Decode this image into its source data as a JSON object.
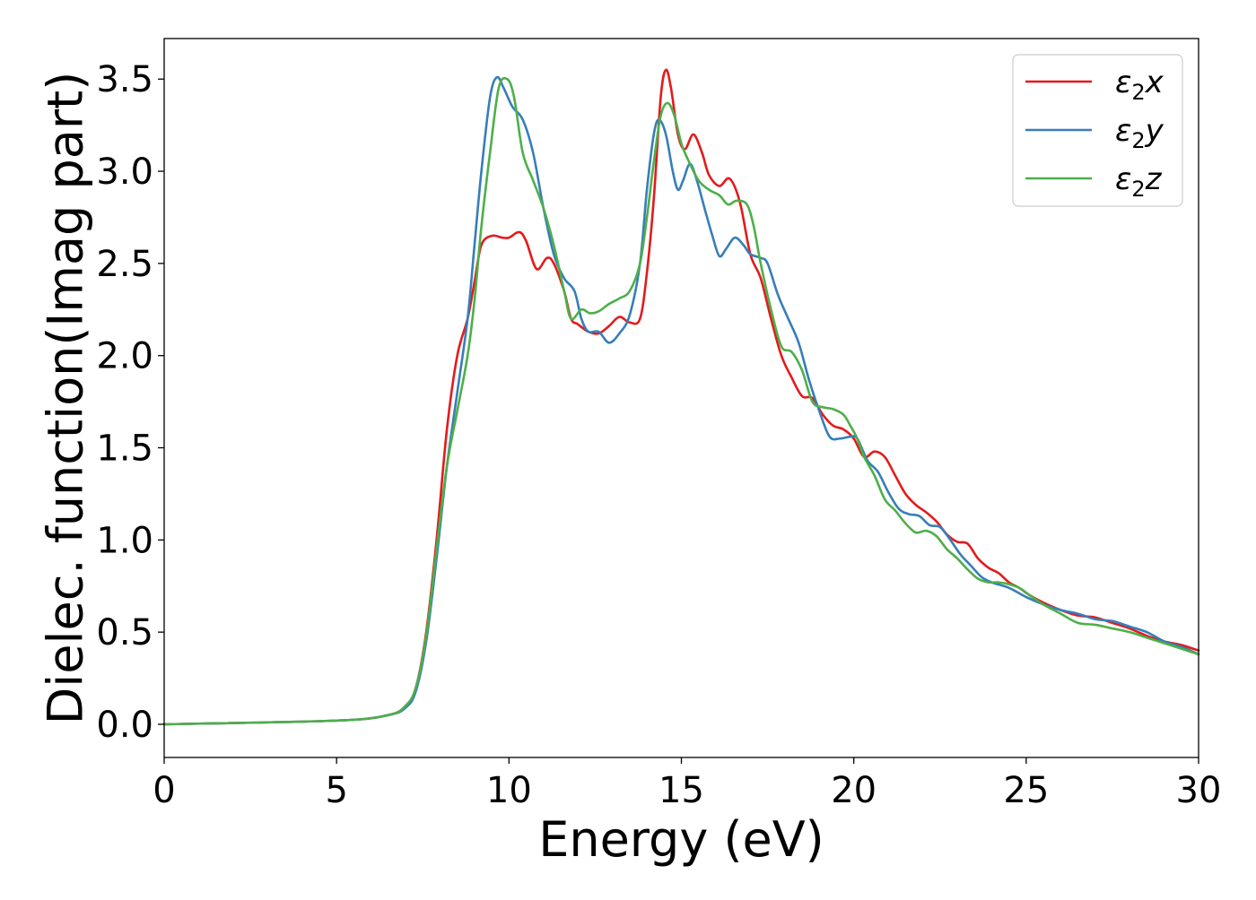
{
  "chart_data": {
    "type": "line",
    "title": "",
    "xlabel": "Energy (eV)",
    "ylabel": "Dielec. function(Imag part)",
    "xlim": [
      0,
      30
    ],
    "ylim": [
      -0.18,
      3.72
    ],
    "x_ticks": [
      0,
      5,
      10,
      15,
      20,
      25,
      30
    ],
    "x_tick_labels": [
      "0",
      "5",
      "10",
      "15",
      "20",
      "25",
      "30"
    ],
    "y_ticks": [
      0.0,
      0.5,
      1.0,
      1.5,
      2.0,
      2.5,
      3.0,
      3.5
    ],
    "y_tick_labels": [
      "0.0",
      "0.5",
      "1.0",
      "1.5",
      "2.0",
      "2.5",
      "3.0",
      "3.5"
    ],
    "grid": false,
    "legend_position": "top-right",
    "series": [
      {
        "name": "ε₂x",
        "legend_base": "ε",
        "legend_sub": "2",
        "legend_var": "x",
        "color": "#e41a1c",
        "points": [
          [
            0,
            0.0
          ],
          [
            5,
            0.02
          ],
          [
            6.5,
            0.05
          ],
          [
            7.0,
            0.1
          ],
          [
            7.3,
            0.2
          ],
          [
            7.6,
            0.5
          ],
          [
            7.9,
            1.0
          ],
          [
            8.2,
            1.6
          ],
          [
            8.5,
            2.0
          ],
          [
            8.8,
            2.2
          ],
          [
            9.0,
            2.4
          ],
          [
            9.2,
            2.6
          ],
          [
            9.5,
            2.65
          ],
          [
            9.8,
            2.64
          ],
          [
            10.0,
            2.64
          ],
          [
            10.3,
            2.67
          ],
          [
            10.5,
            2.62
          ],
          [
            10.8,
            2.47
          ],
          [
            11.1,
            2.53
          ],
          [
            11.3,
            2.5
          ],
          [
            11.6,
            2.35
          ],
          [
            11.8,
            2.2
          ],
          [
            12.0,
            2.17
          ],
          [
            12.3,
            2.13
          ],
          [
            12.6,
            2.12
          ],
          [
            12.9,
            2.16
          ],
          [
            13.2,
            2.21
          ],
          [
            13.5,
            2.18
          ],
          [
            13.8,
            2.2
          ],
          [
            14.0,
            2.45
          ],
          [
            14.2,
            2.85
          ],
          [
            14.4,
            3.4
          ],
          [
            14.55,
            3.55
          ],
          [
            14.7,
            3.45
          ],
          [
            14.9,
            3.2
          ],
          [
            15.1,
            3.12
          ],
          [
            15.35,
            3.2
          ],
          [
            15.6,
            3.1
          ],
          [
            15.8,
            2.98
          ],
          [
            16.1,
            2.92
          ],
          [
            16.4,
            2.96
          ],
          [
            16.7,
            2.83
          ],
          [
            17.0,
            2.55
          ],
          [
            17.3,
            2.42
          ],
          [
            17.6,
            2.2
          ],
          [
            17.9,
            2.0
          ],
          [
            18.2,
            1.88
          ],
          [
            18.5,
            1.78
          ],
          [
            18.8,
            1.77
          ],
          [
            19.1,
            1.68
          ],
          [
            19.4,
            1.62
          ],
          [
            19.7,
            1.6
          ],
          [
            20.0,
            1.55
          ],
          [
            20.3,
            1.45
          ],
          [
            20.6,
            1.48
          ],
          [
            20.9,
            1.45
          ],
          [
            21.2,
            1.35
          ],
          [
            21.5,
            1.25
          ],
          [
            21.8,
            1.19
          ],
          [
            22.1,
            1.15
          ],
          [
            22.4,
            1.1
          ],
          [
            22.7,
            1.03
          ],
          [
            23.0,
            0.99
          ],
          [
            23.3,
            0.98
          ],
          [
            23.6,
            0.9
          ],
          [
            23.9,
            0.85
          ],
          [
            24.2,
            0.82
          ],
          [
            24.5,
            0.77
          ],
          [
            24.8,
            0.74
          ],
          [
            25.1,
            0.7
          ],
          [
            25.5,
            0.66
          ],
          [
            26.0,
            0.62
          ],
          [
            26.5,
            0.59
          ],
          [
            27.0,
            0.58
          ],
          [
            27.5,
            0.55
          ],
          [
            28.0,
            0.52
          ],
          [
            28.5,
            0.48
          ],
          [
            29.0,
            0.45
          ],
          [
            29.5,
            0.43
          ],
          [
            30.0,
            0.4
          ]
        ]
      },
      {
        "name": "ε₂y",
        "legend_base": "ε",
        "legend_sub": "2",
        "legend_var": "y",
        "color": "#377eb8",
        "points": [
          [
            0,
            0.0
          ],
          [
            5,
            0.02
          ],
          [
            6.5,
            0.05
          ],
          [
            7.0,
            0.09
          ],
          [
            7.3,
            0.18
          ],
          [
            7.6,
            0.45
          ],
          [
            7.9,
            0.9
          ],
          [
            8.2,
            1.4
          ],
          [
            8.5,
            1.8
          ],
          [
            8.8,
            2.2
          ],
          [
            9.0,
            2.6
          ],
          [
            9.2,
            3.0
          ],
          [
            9.45,
            3.4
          ],
          [
            9.65,
            3.51
          ],
          [
            9.85,
            3.45
          ],
          [
            10.1,
            3.35
          ],
          [
            10.4,
            3.28
          ],
          [
            10.7,
            3.1
          ],
          [
            11.0,
            2.8
          ],
          [
            11.3,
            2.55
          ],
          [
            11.6,
            2.42
          ],
          [
            11.9,
            2.35
          ],
          [
            12.1,
            2.2
          ],
          [
            12.3,
            2.13
          ],
          [
            12.6,
            2.13
          ],
          [
            12.9,
            2.07
          ],
          [
            13.2,
            2.12
          ],
          [
            13.5,
            2.22
          ],
          [
            13.8,
            2.5
          ],
          [
            14.0,
            2.9
          ],
          [
            14.2,
            3.2
          ],
          [
            14.35,
            3.28
          ],
          [
            14.55,
            3.2
          ],
          [
            14.75,
            3.0
          ],
          [
            14.9,
            2.9
          ],
          [
            15.05,
            2.95
          ],
          [
            15.25,
            3.04
          ],
          [
            15.45,
            2.95
          ],
          [
            15.7,
            2.78
          ],
          [
            15.9,
            2.65
          ],
          [
            16.1,
            2.54
          ],
          [
            16.3,
            2.58
          ],
          [
            16.55,
            2.64
          ],
          [
            16.8,
            2.6
          ],
          [
            17.0,
            2.55
          ],
          [
            17.3,
            2.53
          ],
          [
            17.5,
            2.5
          ],
          [
            17.8,
            2.33
          ],
          [
            18.1,
            2.2
          ],
          [
            18.4,
            2.07
          ],
          [
            18.7,
            1.87
          ],
          [
            19.0,
            1.7
          ],
          [
            19.3,
            1.56
          ],
          [
            19.6,
            1.55
          ],
          [
            19.9,
            1.56
          ],
          [
            20.1,
            1.55
          ],
          [
            20.4,
            1.43
          ],
          [
            20.7,
            1.37
          ],
          [
            21.0,
            1.26
          ],
          [
            21.3,
            1.17
          ],
          [
            21.6,
            1.14
          ],
          [
            21.9,
            1.13
          ],
          [
            22.2,
            1.08
          ],
          [
            22.5,
            1.07
          ],
          [
            22.8,
            1.0
          ],
          [
            23.1,
            0.92
          ],
          [
            23.4,
            0.86
          ],
          [
            23.7,
            0.8
          ],
          [
            24.0,
            0.77
          ],
          [
            24.5,
            0.74
          ],
          [
            25.0,
            0.69
          ],
          [
            25.5,
            0.65
          ],
          [
            26.0,
            0.62
          ],
          [
            26.5,
            0.6
          ],
          [
            27.0,
            0.57
          ],
          [
            27.5,
            0.56
          ],
          [
            28.0,
            0.53
          ],
          [
            28.5,
            0.5
          ],
          [
            29.0,
            0.45
          ],
          [
            29.5,
            0.42
          ],
          [
            30.0,
            0.38
          ]
        ]
      },
      {
        "name": "ε₂z",
        "legend_base": "ε",
        "legend_sub": "2",
        "legend_var": "z",
        "color": "#4daf4a",
        "points": [
          [
            0,
            0.0
          ],
          [
            5,
            0.02
          ],
          [
            6.5,
            0.05
          ],
          [
            7.0,
            0.1
          ],
          [
            7.3,
            0.2
          ],
          [
            7.6,
            0.48
          ],
          [
            7.9,
            0.95
          ],
          [
            8.2,
            1.4
          ],
          [
            8.5,
            1.7
          ],
          [
            8.8,
            2.0
          ],
          [
            9.0,
            2.3
          ],
          [
            9.2,
            2.7
          ],
          [
            9.45,
            3.1
          ],
          [
            9.7,
            3.45
          ],
          [
            9.95,
            3.5
          ],
          [
            10.15,
            3.4
          ],
          [
            10.4,
            3.1
          ],
          [
            10.7,
            2.95
          ],
          [
            11.0,
            2.8
          ],
          [
            11.3,
            2.6
          ],
          [
            11.6,
            2.35
          ],
          [
            11.8,
            2.2
          ],
          [
            12.1,
            2.25
          ],
          [
            12.35,
            2.23
          ],
          [
            12.6,
            2.24
          ],
          [
            12.9,
            2.28
          ],
          [
            13.2,
            2.31
          ],
          [
            13.5,
            2.35
          ],
          [
            13.8,
            2.5
          ],
          [
            14.0,
            2.75
          ],
          [
            14.2,
            3.05
          ],
          [
            14.4,
            3.3
          ],
          [
            14.6,
            3.37
          ],
          [
            14.8,
            3.3
          ],
          [
            15.0,
            3.15
          ],
          [
            15.2,
            3.06
          ],
          [
            15.5,
            2.95
          ],
          [
            15.8,
            2.9
          ],
          [
            16.1,
            2.87
          ],
          [
            16.35,
            2.82
          ],
          [
            16.6,
            2.84
          ],
          [
            16.9,
            2.82
          ],
          [
            17.1,
            2.7
          ],
          [
            17.3,
            2.5
          ],
          [
            17.6,
            2.25
          ],
          [
            17.9,
            2.05
          ],
          [
            18.2,
            2.02
          ],
          [
            18.5,
            1.92
          ],
          [
            18.8,
            1.75
          ],
          [
            19.1,
            1.72
          ],
          [
            19.4,
            1.71
          ],
          [
            19.7,
            1.68
          ],
          [
            19.9,
            1.62
          ],
          [
            20.1,
            1.55
          ],
          [
            20.3,
            1.45
          ],
          [
            20.6,
            1.35
          ],
          [
            20.9,
            1.22
          ],
          [
            21.2,
            1.16
          ],
          [
            21.5,
            1.09
          ],
          [
            21.8,
            1.04
          ],
          [
            22.1,
            1.05
          ],
          [
            22.4,
            1.02
          ],
          [
            22.7,
            0.95
          ],
          [
            23.0,
            0.9
          ],
          [
            23.3,
            0.84
          ],
          [
            23.6,
            0.79
          ],
          [
            23.9,
            0.77
          ],
          [
            24.2,
            0.77
          ],
          [
            24.5,
            0.76
          ],
          [
            24.8,
            0.74
          ],
          [
            25.1,
            0.7
          ],
          [
            25.5,
            0.65
          ],
          [
            26.0,
            0.6
          ],
          [
            26.5,
            0.55
          ],
          [
            27.0,
            0.54
          ],
          [
            27.5,
            0.52
          ],
          [
            28.0,
            0.5
          ],
          [
            28.5,
            0.47
          ],
          [
            29.0,
            0.44
          ],
          [
            29.5,
            0.41
          ],
          [
            30.0,
            0.38
          ]
        ]
      }
    ]
  }
}
